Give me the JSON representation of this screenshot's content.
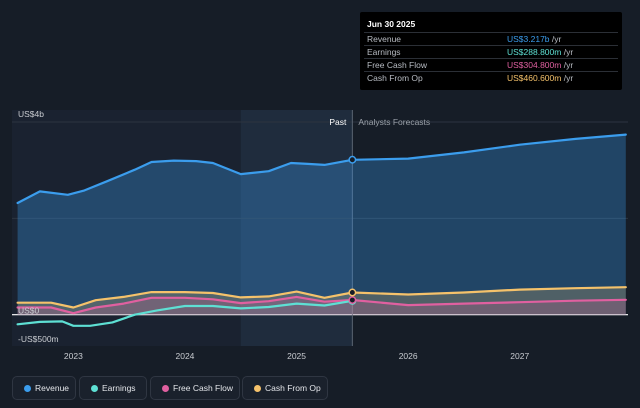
{
  "chart_data": {
    "type": "area",
    "x_range": [
      2022.45,
      2027.97
    ],
    "y_range": [
      -650,
      4250
    ],
    "past_forecast_split": 2025.5,
    "highlight_start": 2024.5,
    "y_tick_labels": [
      {
        "value": 4000,
        "label": "US$4b"
      },
      {
        "value": 0,
        "label": "US$0"
      },
      {
        "value": -500,
        "label": "-US$500m"
      }
    ],
    "y_grid_values": [
      4000,
      2000,
      0
    ],
    "x_ticks": [
      {
        "value": 2023.0,
        "label": "2023"
      },
      {
        "value": 2024.0,
        "label": "2024"
      },
      {
        "value": 2025.0,
        "label": "2025"
      },
      {
        "value": 2026.0,
        "label": "2026"
      },
      {
        "value": 2027.0,
        "label": "2027"
      }
    ],
    "past_label": "Past",
    "forecast_label": "Analysts Forecasts",
    "series": [
      {
        "name": "Revenue",
        "color": "#3b9ded",
        "fill": true,
        "x": [
          2022.5,
          2022.7,
          2022.95,
          2023.1,
          2023.3,
          2023.55,
          2023.7,
          2023.9,
          2024.1,
          2024.25,
          2024.5,
          2024.75,
          2024.95,
          2025.1,
          2025.25,
          2025.5,
          2026.0,
          2026.5,
          2027.0,
          2027.5,
          2027.95
        ],
        "y": [
          2320,
          2560,
          2490,
          2580,
          2770,
          3010,
          3170,
          3200,
          3190,
          3150,
          2920,
          2980,
          3150,
          3130,
          3110,
          3217,
          3240,
          3370,
          3530,
          3650,
          3740
        ]
      },
      {
        "name": "Earnings",
        "color": "#5ee0d4",
        "fill": false,
        "x": [
          2022.5,
          2022.7,
          2022.9,
          2023.0,
          2023.15,
          2023.35,
          2023.55,
          2023.75,
          2024.0,
          2024.25,
          2024.5,
          2024.75,
          2025.0,
          2025.25,
          2025.5
        ],
        "y": [
          -200,
          -150,
          -140,
          -230,
          -230,
          -160,
          0,
          90,
          180,
          180,
          130,
          160,
          230,
          190,
          288.8
        ]
      },
      {
        "name": "Free Cash Flow",
        "color": "#e060a0",
        "fill": true,
        "x": [
          2022.5,
          2022.8,
          2023.0,
          2023.2,
          2023.45,
          2023.7,
          2024.0,
          2024.25,
          2024.5,
          2024.75,
          2025.0,
          2025.25,
          2025.5,
          2026.0,
          2026.5,
          2027.0,
          2027.5,
          2027.95
        ],
        "y": [
          150,
          150,
          30,
          150,
          230,
          350,
          350,
          320,
          240,
          280,
          370,
          270,
          304.8,
          200,
          230,
          260,
          290,
          310
        ]
      },
      {
        "name": "Cash From Op",
        "color": "#f5c26b",
        "fill": true,
        "x": [
          2022.5,
          2022.8,
          2023.0,
          2023.2,
          2023.45,
          2023.7,
          2024.0,
          2024.25,
          2024.5,
          2024.75,
          2025.0,
          2025.25,
          2025.5,
          2026.0,
          2026.5,
          2027.0,
          2027.5,
          2027.95
        ],
        "y": [
          250,
          250,
          150,
          300,
          370,
          470,
          470,
          450,
          360,
          380,
          480,
          350,
          460.6,
          420,
          460,
          520,
          550,
          570
        ]
      }
    ]
  },
  "tooltip": {
    "date": "Jun 30 2025",
    "rows": [
      {
        "label": "Revenue",
        "value": "US$3.217b",
        "unit": " /yr",
        "color": "#3b9ded"
      },
      {
        "label": "Earnings",
        "value": "US$288.800m",
        "unit": " /yr",
        "color": "#5ee0d4"
      },
      {
        "label": "Free Cash Flow",
        "value": "US$304.800m",
        "unit": " /yr",
        "color": "#e060a0"
      },
      {
        "label": "Cash From Op",
        "value": "US$460.600m",
        "unit": " /yr",
        "color": "#f5c26b"
      }
    ]
  },
  "legend": [
    {
      "label": "Revenue",
      "color": "#3b9ded"
    },
    {
      "label": "Earnings",
      "color": "#5ee0d4"
    },
    {
      "label": "Free Cash Flow",
      "color": "#e060a0"
    },
    {
      "label": "Cash From Op",
      "color": "#f5c26b"
    }
  ]
}
